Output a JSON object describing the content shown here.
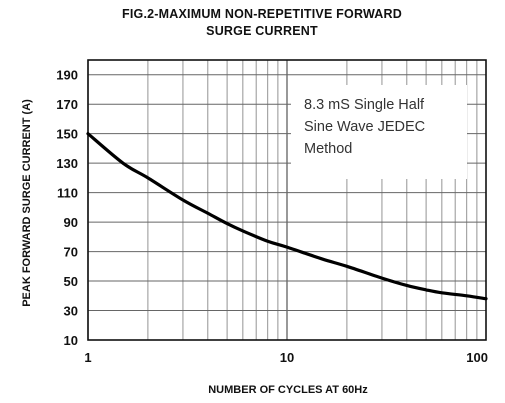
{
  "chart_data": {
    "type": "line",
    "title_lines": [
      "FIG.2-MAXIMUM NON-REPETITIVE FORWARD",
      "SURGE CURRENT"
    ],
    "xlabel": "NUMBER OF CYCLES AT 60Hz",
    "ylabel": "PEAK FORWARD SURGE CURRENT (A)",
    "x_scale": "log",
    "xlim": [
      1,
      100
    ],
    "ylim": [
      10,
      200
    ],
    "x_ticks": [
      1,
      10,
      100
    ],
    "x_tick_labels": [
      "1",
      "10",
      "100"
    ],
    "y_ticks": [
      10,
      30,
      50,
      70,
      90,
      110,
      130,
      150,
      170,
      190
    ],
    "y_tick_labels": [
      "10",
      "30",
      "50",
      "70",
      "90",
      "110",
      "130",
      "150",
      "170",
      "190"
    ],
    "grid": true,
    "annotation_lines": [
      "8.3 mS Single Half",
      "Sine Wave JEDEC",
      "Method"
    ],
    "series": [
      {
        "x": [
          1,
          1.5,
          2,
          3,
          4,
          5,
          6,
          8,
          10,
          15,
          20,
          30,
          40,
          50,
          60,
          80,
          100
        ],
        "y": [
          150,
          130,
          120,
          105,
          96,
          89,
          84,
          77,
          73,
          65,
          60,
          52,
          47,
          44,
          42,
          40,
          38
        ]
      }
    ]
  }
}
